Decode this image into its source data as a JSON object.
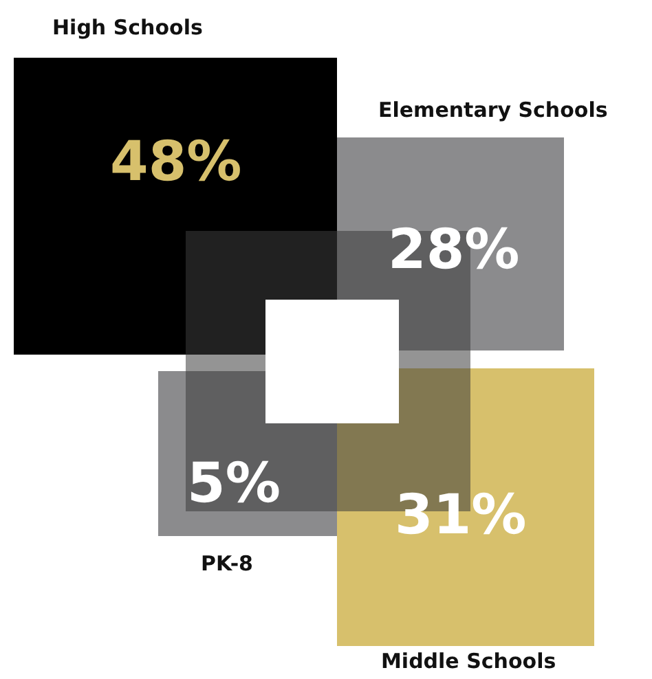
{
  "chart_data": {
    "type": "other",
    "categories": [
      "High Schools",
      "Elementary Schools",
      "PK-8",
      "Middle Schools"
    ],
    "values": [
      48,
      28,
      5,
      31
    ],
    "value_labels": [
      "48%",
      "28%",
      "5%",
      "31%"
    ],
    "colors": [
      "#000000",
      "#8b8b8d",
      "#8b8b8d",
      "#d7c06c"
    ]
  }
}
